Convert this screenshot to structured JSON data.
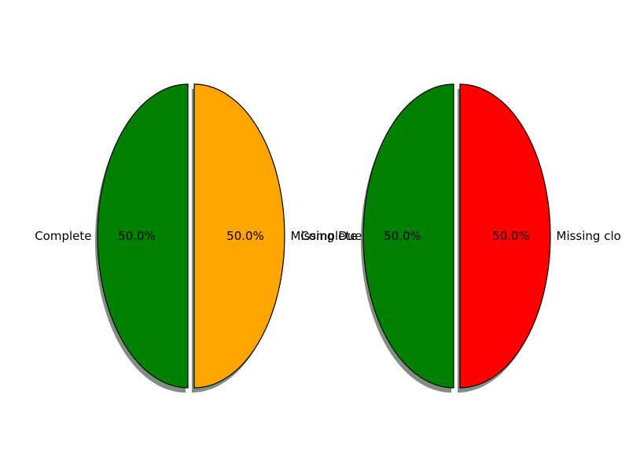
{
  "chart_data": [
    {
      "type": "pie",
      "slices": [
        {
          "label": "Complete",
          "value": 50.0,
          "pct_label": "50.0%",
          "color": "#008000"
        },
        {
          "label": "Missing Due",
          "value": 50.0,
          "pct_label": "50.0%",
          "color": "#FFA500"
        }
      ]
    },
    {
      "type": "pie",
      "slices": [
        {
          "label": "Complete",
          "value": 50.0,
          "pct_label": "50.0%",
          "color": "#008000"
        },
        {
          "label": "Missing clo",
          "value": 50.0,
          "pct_label": "50.0%",
          "color": "#FF0000"
        }
      ]
    }
  ],
  "shadow_color": "#556B55"
}
